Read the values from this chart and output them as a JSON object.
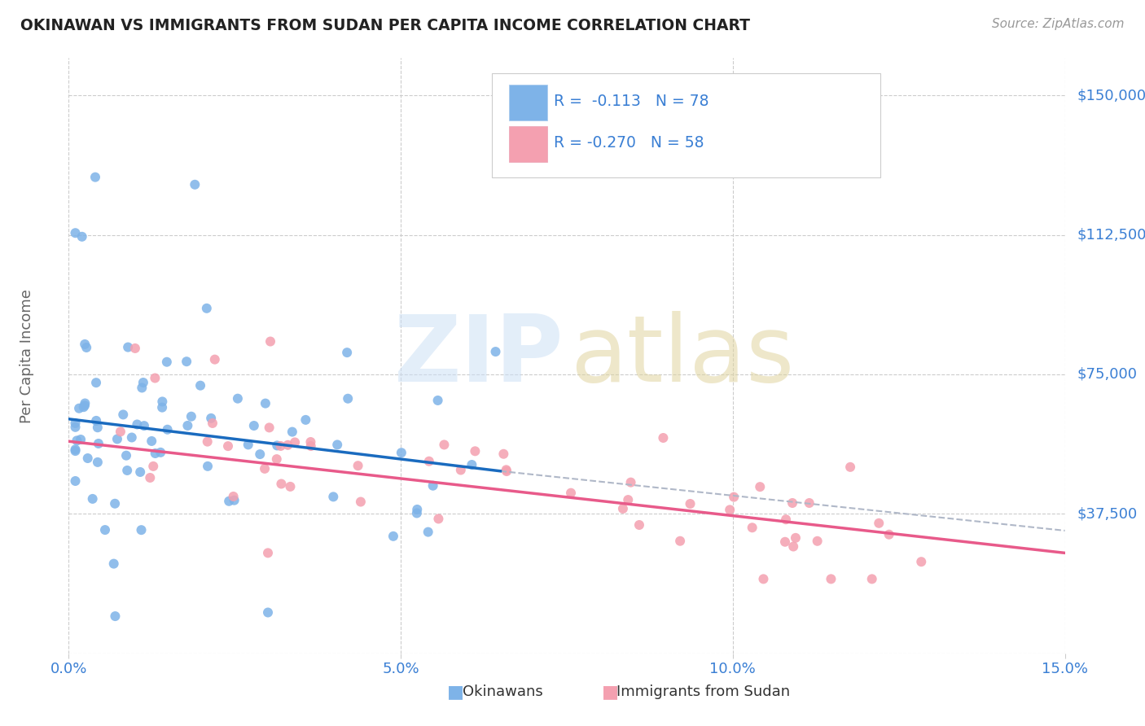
{
  "title": "OKINAWAN VS IMMIGRANTS FROM SUDAN PER CAPITA INCOME CORRELATION CHART",
  "source": "Source: ZipAtlas.com",
  "ylabel": "Per Capita Income",
  "yticks": [
    0,
    37500,
    75000,
    112500,
    150000
  ],
  "ytick_labels": [
    "",
    "$37,500",
    "$75,000",
    "$112,500",
    "$150,000"
  ],
  "xlim": [
    0.0,
    0.15
  ],
  "ylim": [
    0,
    160000
  ],
  "legend_r1": "R =  -0.113   N = 78",
  "legend_r2": "R = -0.270   N = 58",
  "okinawan_color": "#7eb3e8",
  "sudan_color": "#f4a0b0",
  "okinawan_line_color": "#1a6bbf",
  "sudan_line_color": "#e85a8a",
  "dashed_line_color": "#b0b8c8",
  "title_color": "#222222",
  "axis_label_color": "#3a7fd4",
  "legend_text_color": "#3a7fd4",
  "background_color": "#ffffff",
  "grid_color": "#cccccc",
  "ylabel_color": "#666666",
  "source_color": "#999999"
}
